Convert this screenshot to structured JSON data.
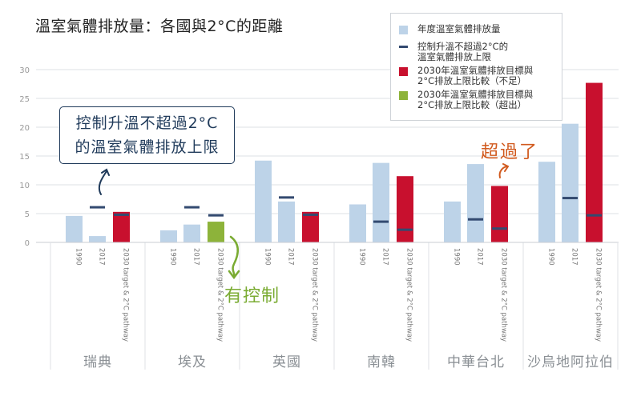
{
  "title": "溫室氣體排放量：各國與2°C的距離",
  "legend": [
    {
      "label": "年度溫室氣體排放量",
      "kind": "bar",
      "color": "#bdd3e8"
    },
    {
      "label": "控制升溫不超過2°C的\n溫室氣體排放上限",
      "kind": "dash",
      "color": "#334a70"
    },
    {
      "label": "2030年溫室氣體排放目標與\n2°C排放上限比較（不足）",
      "kind": "bar",
      "color": "#c8102e"
    },
    {
      "label": "2030年溫室氣體排放目標與\n2°C排放上限比較（超出）",
      "kind": "bar",
      "color": "#8db33a"
    }
  ],
  "annotations": {
    "box_line1": "控制升溫不超過2°C",
    "box_line2": "的溫室氣體排放上限",
    "green_note": "有控制",
    "orange_note": "超過了"
  },
  "chart_data": {
    "type": "bar",
    "title": "溫室氣體排放量：各國與2°C的距離",
    "ylim": [
      0,
      30
    ],
    "yticks": [
      0,
      5,
      10,
      15,
      20,
      25,
      30
    ],
    "grid": true,
    "legend_position": "top-right",
    "bar_labels": [
      "1990",
      "2017",
      "2030 target & 2°C pathway"
    ],
    "colors": {
      "actual": "#bdd3e8",
      "short": "#c8102e",
      "over": "#8db33a",
      "limit": "#334a70"
    },
    "groups": [
      {
        "name": "瑞典",
        "values": [
          4.6,
          1.1,
          5.3
        ],
        "limits": [
          null,
          6.1,
          4.8
        ],
        "target_status": "short"
      },
      {
        "name": "埃及",
        "values": [
          2.1,
          3.1,
          3.6
        ],
        "limits": [
          null,
          6.1,
          4.7
        ],
        "target_status": "over"
      },
      {
        "name": "英國",
        "values": [
          14.2,
          7.1,
          5.3
        ],
        "limits": [
          null,
          7.8,
          4.8
        ],
        "target_status": "short"
      },
      {
        "name": "南韓",
        "values": [
          6.6,
          13.8,
          11.5
        ],
        "limits": [
          null,
          3.6,
          2.2
        ],
        "target_status": "short"
      },
      {
        "name": "中華台北",
        "values": [
          7.1,
          13.6,
          9.8
        ],
        "limits": [
          null,
          4.0,
          2.4
        ],
        "target_status": "short"
      },
      {
        "name": "沙烏地阿拉伯",
        "values": [
          14.0,
          20.6,
          27.7
        ],
        "limits": [
          null,
          7.7,
          4.7
        ],
        "target_status": "short"
      }
    ]
  }
}
